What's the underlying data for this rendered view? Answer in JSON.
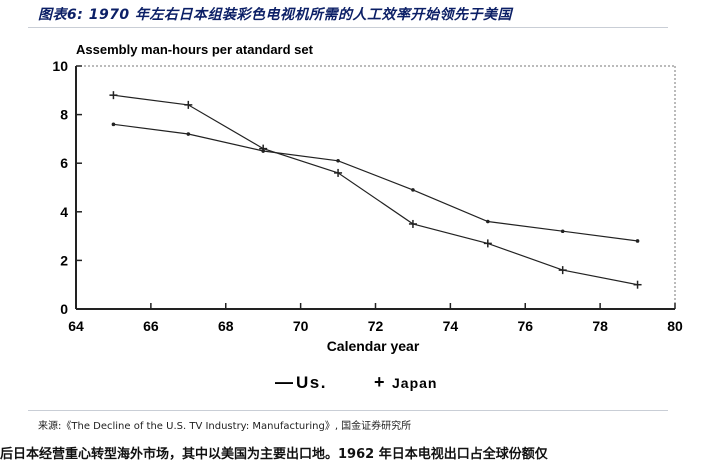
{
  "header": {
    "title": "图表6: 1970 年左右日本组装彩色电视机所需的人工效率开始领先于美国"
  },
  "chart_data": {
    "type": "line",
    "title": "Assembly man-hours per atandard set",
    "xlabel": "Calendar year",
    "ylabel": "",
    "xlim": [
      64,
      80
    ],
    "ylim": [
      0,
      10
    ],
    "xticks": [
      64,
      66,
      68,
      70,
      72,
      74,
      76,
      78,
      80
    ],
    "yticks": [
      0,
      2,
      4,
      6,
      8,
      10
    ],
    "xtick_labels": [
      "64",
      "66",
      "68",
      "70",
      "72",
      "74",
      "76",
      "78",
      "80"
    ],
    "ytick_labels": [
      "0",
      "2",
      "4",
      "6",
      "8",
      "10"
    ],
    "grid": false,
    "series": [
      {
        "name": "Us.",
        "marker": "dot",
        "x": [
          65,
          67,
          69,
          71,
          73,
          75,
          77,
          79
        ],
        "y": [
          7.6,
          7.2,
          6.5,
          6.1,
          4.9,
          3.6,
          3.2,
          2.8
        ]
      },
      {
        "name": "Japan",
        "marker": "plus",
        "x": [
          65,
          67,
          69,
          71,
          73,
          75,
          77,
          79
        ],
        "y": [
          8.8,
          8.4,
          6.6,
          5.6,
          3.5,
          2.7,
          1.6,
          1.0
        ]
      }
    ],
    "legend": [
      {
        "symbol": "—",
        "label": "Us."
      },
      {
        "symbol": "+",
        "label": "Japan"
      }
    ],
    "line_color": "#222222"
  },
  "source": {
    "text": "来源:《The Decline of the U.S. TV Industry: Manufacturing》, 国金证券研究所"
  },
  "footer": {
    "cut_text": "后日本经营重心转型海外市场，其中以美国为主要出口地。1962 年日本电视出口占全球份额仅"
  }
}
